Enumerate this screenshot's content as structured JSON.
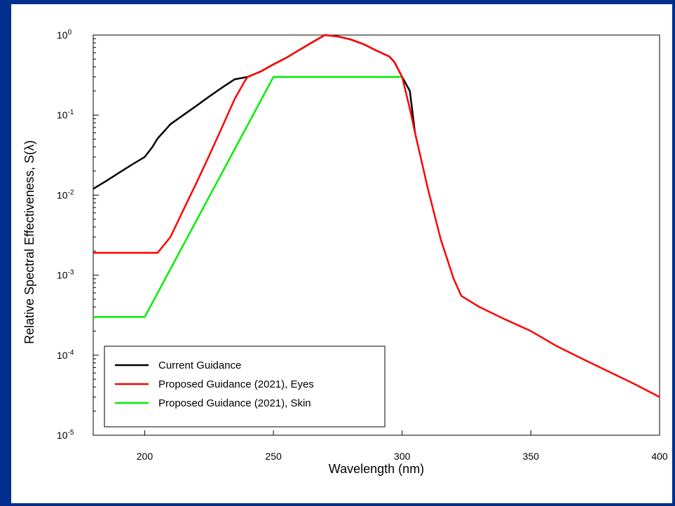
{
  "chart_data": {
    "type": "line",
    "title": "",
    "xlabel": "Wavelength (nm)",
    "ylabel": "Relative Spectral Effectiveness, S(λ)",
    "xlim": [
      180,
      400
    ],
    "ylim": [
      1e-05,
      1
    ],
    "yscale": "log",
    "grid": false,
    "legend_position": "bottom-left",
    "x_ticks": [
      200,
      250,
      300,
      350,
      400
    ],
    "y_ticks": [
      {
        "value": 1,
        "base": "10",
        "exp": "0"
      },
      {
        "value": 0.1,
        "base": "10",
        "exp": "-1"
      },
      {
        "value": 0.01,
        "base": "10",
        "exp": "-2"
      },
      {
        "value": 0.001,
        "base": "10",
        "exp": "-3"
      },
      {
        "value": 0.0001,
        "base": "10",
        "exp": "-4"
      },
      {
        "value": 1e-05,
        "base": "10",
        "exp": "-5"
      }
    ],
    "series": [
      {
        "name": "Current Guidance",
        "color": "#000000",
        "x": [
          180,
          185,
          190,
          195,
          200,
          203,
          205,
          207,
          210,
          215,
          220,
          225,
          230,
          235,
          240,
          245,
          250,
          255,
          260,
          265,
          270,
          275,
          280,
          285,
          290,
          295,
          297,
          300,
          303,
          305
        ],
        "y": [
          0.012,
          0.015,
          0.019,
          0.024,
          0.03,
          0.04,
          0.051,
          0.06,
          0.077,
          0.1,
          0.13,
          0.17,
          0.22,
          0.28,
          0.3,
          0.35,
          0.43,
          0.52,
          0.65,
          0.81,
          1.0,
          0.96,
          0.88,
          0.77,
          0.64,
          0.54,
          0.46,
          0.3,
          0.2,
          0.06
        ]
      },
      {
        "name": "Proposed Guidance (2021), Eyes",
        "color": "#ff0000",
        "x": [
          180,
          190,
          200,
          205,
          210,
          215,
          220,
          225,
          230,
          235,
          239,
          240,
          245,
          250,
          255,
          260,
          265,
          270,
          275,
          280,
          285,
          290,
          295,
          297,
          300,
          303,
          305,
          310,
          315,
          320,
          323,
          330,
          340,
          350,
          360,
          370,
          380,
          390,
          400
        ],
        "y": [
          0.0019,
          0.0019,
          0.0019,
          0.0019,
          0.003,
          0.0065,
          0.014,
          0.031,
          0.07,
          0.16,
          0.27,
          0.3,
          0.35,
          0.43,
          0.52,
          0.65,
          0.81,
          1.0,
          0.96,
          0.88,
          0.77,
          0.64,
          0.54,
          0.46,
          0.3,
          0.12,
          0.06,
          0.012,
          0.0028,
          0.0009,
          0.00055,
          0.0004,
          0.00028,
          0.0002,
          0.00013,
          9e-05,
          6.3e-05,
          4.4e-05,
          3e-05
        ]
      },
      {
        "name": "Proposed Guidance (2021), Skin",
        "color": "#00ee00",
        "x": [
          180,
          190,
          200,
          250,
          300
        ],
        "y": [
          0.0003,
          0.0003,
          0.0003,
          0.3,
          0.3
        ]
      }
    ]
  }
}
